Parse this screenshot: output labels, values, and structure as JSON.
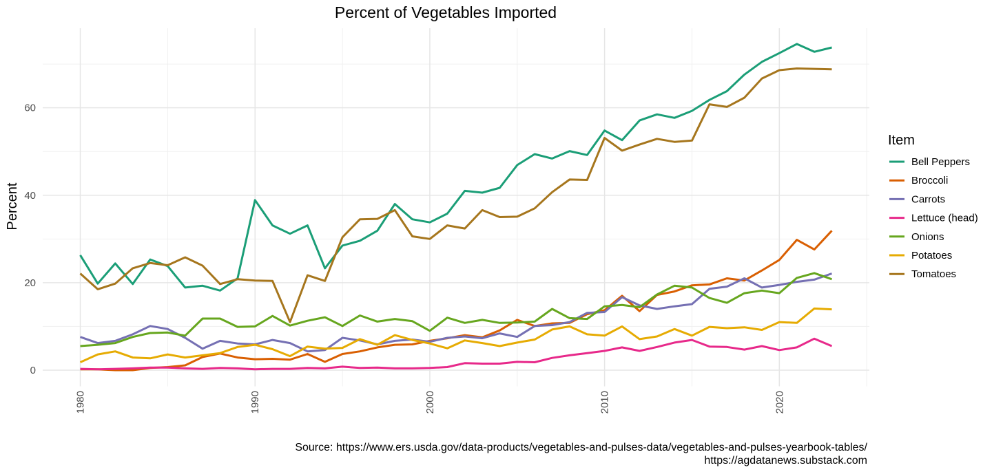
{
  "chart_data": {
    "type": "line",
    "title": "Percent of Vegetables Imported",
    "y_label": "Percent",
    "legend_title": "Item",
    "source": [
      "Source: https://www.ers.usda.gov/data-products/vegetables-and-pulses-data/vegetables-and-pulses-yearbook-tables/",
      "https://agdatanews.substack.com"
    ],
    "x": [
      1980,
      1981,
      1982,
      1983,
      1984,
      1985,
      1986,
      1987,
      1988,
      1989,
      1990,
      1991,
      1992,
      1993,
      1994,
      1995,
      1996,
      1997,
      1998,
      1999,
      2000,
      2001,
      2002,
      2003,
      2004,
      2005,
      2006,
      2007,
      2008,
      2009,
      2010,
      2011,
      2012,
      2013,
      2014,
      2015,
      2016,
      2017,
      2018,
      2019,
      2020,
      2021,
      2022,
      2023
    ],
    "xlim": [
      1977.85,
      2025.15
    ],
    "xticks": [
      1980,
      1990,
      2000,
      2010,
      2020
    ],
    "x_minor_ticks": [
      1985,
      1995,
      2005,
      2015,
      2025
    ],
    "ylim": [
      -3.7,
      78.2
    ],
    "yticks": [
      0,
      20,
      40,
      60
    ],
    "y_minor_ticks": [
      10,
      30,
      50,
      70
    ],
    "grid": true,
    "legend": "right",
    "series": [
      {
        "name": "Bell Peppers",
        "color": "#1b9e77",
        "values": [
          26.3,
          19.8,
          24.4,
          19.7,
          25.3,
          23.8,
          18.9,
          19.3,
          18.2,
          21.0,
          38.9,
          33.1,
          31.2,
          33.1,
          23.3,
          28.5,
          29.6,
          31.9,
          38.0,
          34.5,
          33.8,
          35.8,
          41.0,
          40.6,
          41.7,
          46.9,
          49.4,
          48.4,
          50.1,
          49.2,
          54.8,
          52.6,
          57.1,
          58.5,
          57.7,
          59.3,
          61.8,
          63.8,
          67.6,
          70.5,
          72.5,
          74.6,
          72.8,
          73.8
        ]
      },
      {
        "name": "Broccoli",
        "color": "#d95f02",
        "values": [
          0.2,
          0.2,
          0.0,
          0.0,
          0.5,
          0.7,
          1.1,
          3.0,
          3.8,
          2.9,
          2.5,
          2.6,
          2.4,
          3.7,
          1.9,
          3.7,
          4.3,
          5.2,
          5.8,
          5.9,
          6.7,
          7.3,
          8.0,
          7.5,
          9.1,
          11.5,
          10.1,
          10.7,
          10.8,
          12.8,
          13.7,
          17.0,
          13.5,
          17.2,
          18.0,
          19.4,
          19.6,
          21.0,
          20.5,
          22.8,
          25.2,
          29.8,
          27.6,
          31.9
        ]
      },
      {
        "name": "Carrots",
        "color": "#7570b3",
        "values": [
          7.6,
          6.2,
          6.7,
          8.2,
          10.1,
          9.4,
          7.4,
          4.9,
          6.7,
          6.1,
          5.9,
          6.9,
          6.2,
          4.3,
          4.6,
          7.4,
          6.8,
          5.9,
          6.7,
          7.0,
          6.5,
          7.4,
          7.7,
          7.3,
          8.4,
          7.6,
          10.1,
          10.3,
          11.0,
          13.1,
          13.3,
          16.7,
          14.8,
          14.0,
          14.6,
          15.1,
          18.6,
          19.1,
          21.0,
          18.9,
          19.5,
          20.2,
          20.7,
          22.1
        ]
      },
      {
        "name": "Lettuce (head)",
        "color": "#e7298a",
        "values": [
          0.3,
          0.2,
          0.3,
          0.4,
          0.6,
          0.6,
          0.4,
          0.3,
          0.5,
          0.4,
          0.2,
          0.3,
          0.3,
          0.5,
          0.4,
          0.8,
          0.5,
          0.6,
          0.4,
          0.4,
          0.5,
          0.7,
          1.6,
          1.5,
          1.5,
          1.9,
          1.8,
          2.8,
          3.4,
          3.9,
          4.4,
          5.2,
          4.4,
          5.3,
          6.3,
          6.9,
          5.4,
          5.3,
          4.7,
          5.5,
          4.6,
          5.2,
          7.2,
          5.5
        ]
      },
      {
        "name": "Onions",
        "color": "#66a61e",
        "values": [
          5.5,
          5.8,
          6.2,
          7.6,
          8.5,
          8.6,
          7.9,
          11.8,
          11.8,
          9.9,
          10.0,
          12.4,
          10.2,
          11.3,
          12.1,
          10.1,
          12.5,
          11.1,
          11.7,
          11.2,
          9.0,
          12.0,
          10.8,
          11.5,
          10.8,
          10.9,
          11.1,
          14.0,
          11.9,
          11.7,
          14.6,
          14.9,
          14.4,
          17.3,
          19.3,
          18.9,
          16.5,
          15.4,
          17.6,
          18.2,
          17.6,
          21.1,
          22.2,
          20.8
        ]
      },
      {
        "name": "Potatoes",
        "color": "#e6ab02",
        "values": [
          1.8,
          3.6,
          4.3,
          2.9,
          2.7,
          3.6,
          2.9,
          3.4,
          3.9,
          5.3,
          5.8,
          4.8,
          3.2,
          5.4,
          4.9,
          5.1,
          7.1,
          5.8,
          8.0,
          6.9,
          6.1,
          5.0,
          6.8,
          6.2,
          5.5,
          6.3,
          7.0,
          9.3,
          10.0,
          8.2,
          7.9,
          10.0,
          7.1,
          7.7,
          9.4,
          7.9,
          9.9,
          9.6,
          9.8,
          9.2,
          11.0,
          10.8,
          14.1,
          13.9
        ]
      },
      {
        "name": "Tomatoes",
        "color": "#a6761d",
        "values": [
          22.1,
          18.5,
          19.8,
          23.3,
          24.5,
          24.0,
          25.8,
          23.9,
          19.7,
          20.8,
          20.5,
          20.4,
          11.0,
          21.7,
          20.4,
          30.4,
          34.5,
          34.6,
          36.6,
          30.6,
          30.0,
          33.1,
          32.4,
          36.6,
          35.0,
          35.1,
          37.0,
          40.7,
          43.6,
          43.5,
          53.1,
          50.2,
          51.6,
          52.9,
          52.2,
          52.5,
          60.8,
          60.2,
          62.3,
          66.7,
          68.6,
          69.0,
          68.9,
          68.8
        ]
      }
    ]
  }
}
